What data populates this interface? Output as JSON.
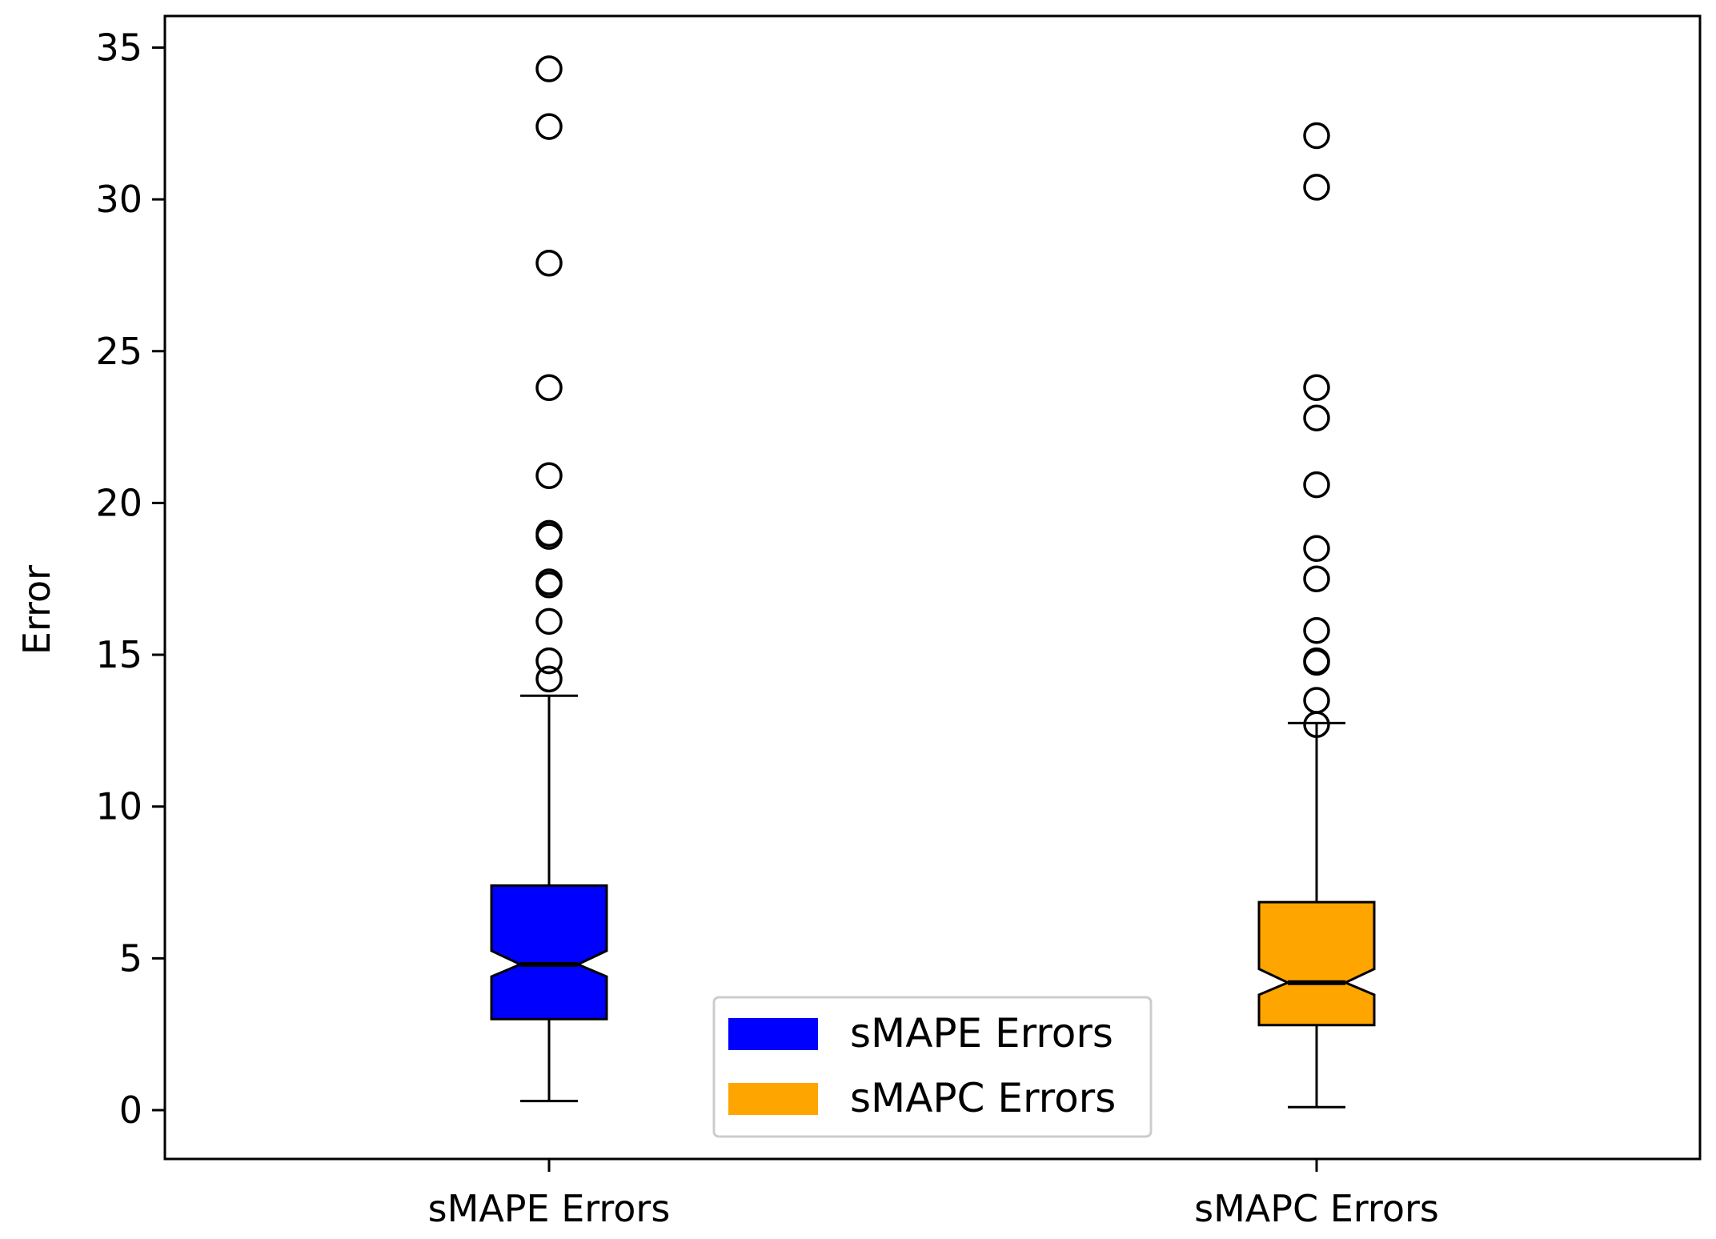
{
  "chart_data": {
    "type": "boxplot",
    "title": "",
    "xlabel": "",
    "ylabel": "Error",
    "ylim": [
      -1.6,
      36.0
    ],
    "yticks": [
      0,
      5,
      10,
      15,
      20,
      25,
      30,
      35
    ],
    "categories": [
      "sMAPE Errors",
      "sMAPC Errors"
    ],
    "grid": false,
    "notched": true,
    "series": [
      {
        "name": "sMAPE Errors",
        "color": "#0000ff",
        "whisker_low": 0.3,
        "q1": 3.0,
        "notch_low": 4.4,
        "median": 4.8,
        "notch_high": 5.25,
        "q3": 7.4,
        "whisker_high": 13.65,
        "outliers": [
          14.2,
          14.8,
          16.1,
          17.3,
          17.4,
          18.9,
          19.0,
          20.9,
          23.8,
          27.9,
          32.4,
          34.3
        ]
      },
      {
        "name": "sMAPC Errors",
        "color": "#ffa500",
        "whisker_low": 0.1,
        "q1": 2.8,
        "notch_low": 3.8,
        "median": 4.2,
        "notch_high": 4.65,
        "q3": 6.85,
        "whisker_high": 12.75,
        "outliers": [
          12.7,
          13.5,
          14.75,
          14.8,
          15.8,
          17.5,
          18.5,
          20.6,
          22.8,
          23.8,
          30.4,
          32.1
        ]
      }
    ],
    "legend": {
      "position": "lower center",
      "entries": [
        {
          "label": "sMAPE Errors",
          "color": "#0000ff"
        },
        {
          "label": "sMAPC Errors",
          "color": "#ffa500"
        }
      ]
    }
  }
}
